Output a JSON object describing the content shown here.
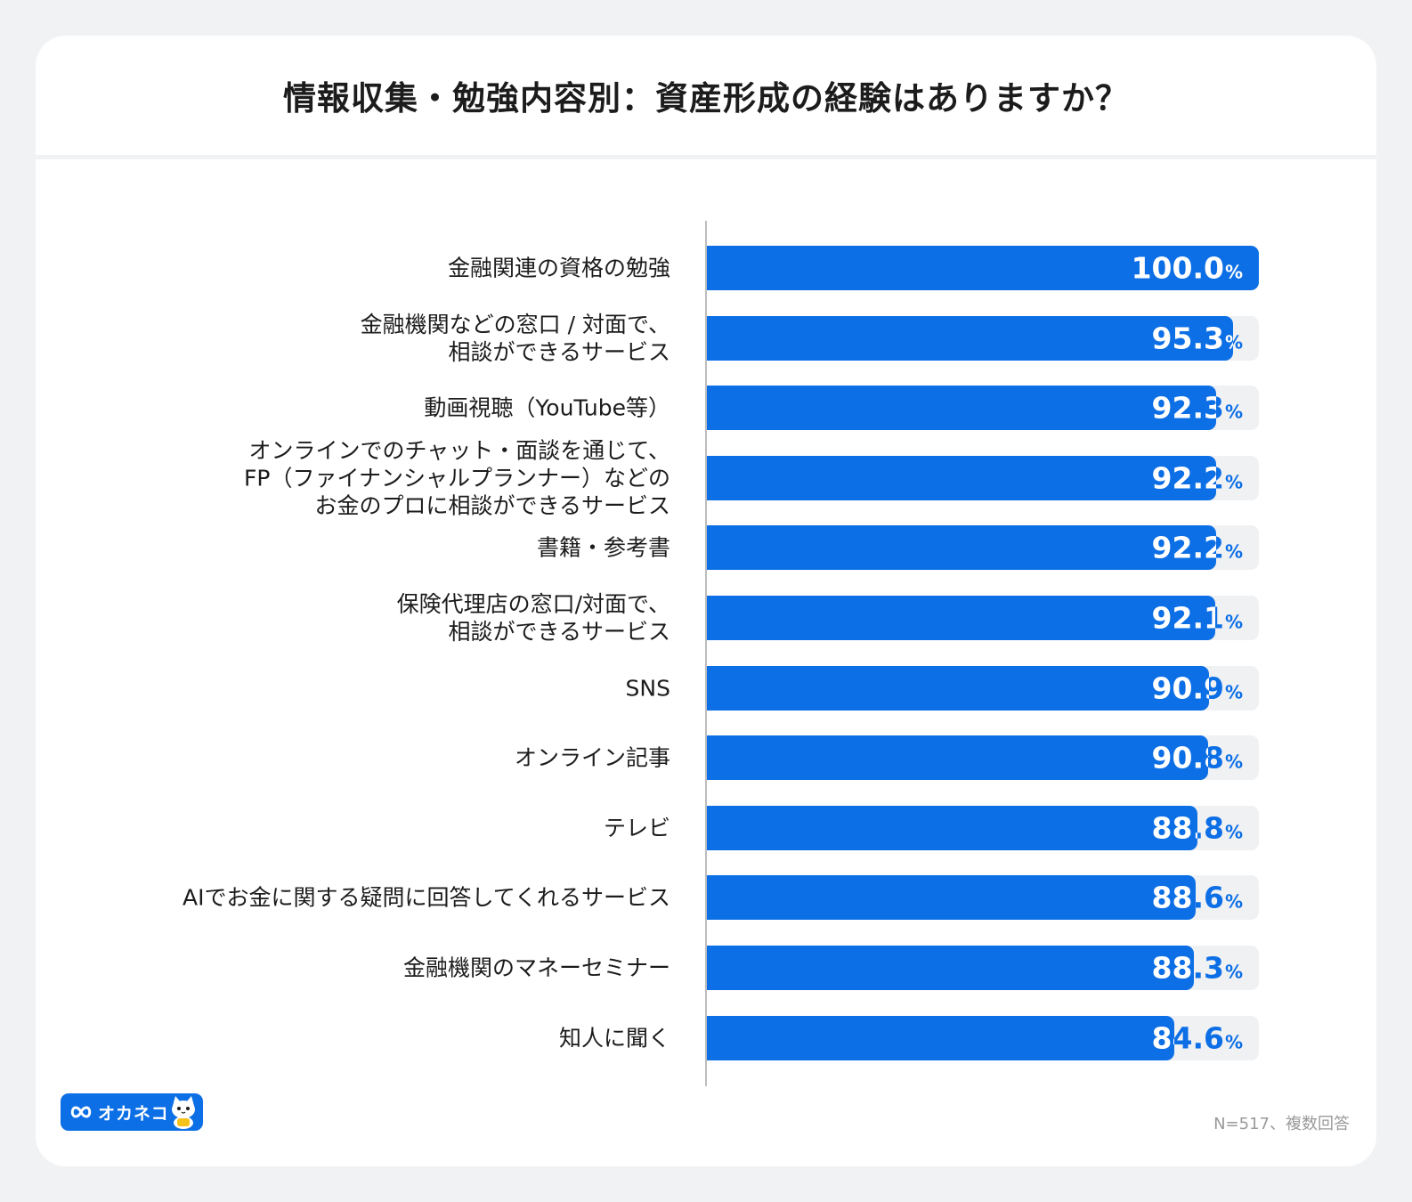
{
  "colors": {
    "background": "#f1f2f4",
    "card": "#ffffff",
    "bar": "#0d6fe6",
    "track": "#f0f1f3",
    "text": "#1c1c1c",
    "note": "#9a9a9a"
  },
  "logo": {
    "text": "オカネコ",
    "icon": "cat-mascot-icon"
  },
  "footnote": "N=517、複数回答",
  "chart_data": {
    "type": "bar",
    "orientation": "horizontal",
    "title": "情報収集・勉強内容別：資産形成の経験はありますか？",
    "xlim": [
      0,
      100
    ],
    "unit": "%",
    "categories": [
      "金融関連の資格の勉強",
      "金融機関などの窓口 / 対面で、\n相談ができるサービス",
      "動画視聴（YouTube等）",
      "オンラインでのチャット・面談を通じて、\nFP（ファイナンシャルプランナー）などの\nお金のプロに相談ができるサービス",
      "書籍・参考書",
      "保険代理店の窓口/対面で、\n相談ができるサービス",
      "SNS",
      "オンライン記事",
      "テレビ",
      "AIでお金に関する疑問に回答してくれるサービス",
      "金融機関のマネーセミナー",
      "知人に聞く"
    ],
    "values": [
      100.0,
      95.3,
      92.3,
      92.2,
      92.2,
      92.1,
      90.9,
      90.8,
      88.8,
      88.6,
      88.3,
      84.6
    ],
    "labels": [
      "100.0",
      "95.3",
      "92.3",
      "92.2",
      "92.2",
      "92.1",
      "90.9",
      "90.8",
      "88.8",
      "88.6",
      "88.3",
      "84.6"
    ],
    "pct_symbol": "%"
  }
}
